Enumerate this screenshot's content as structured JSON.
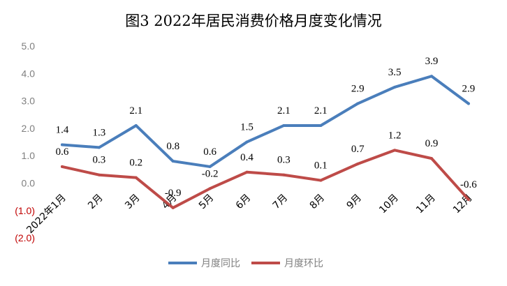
{
  "chart_data": {
    "type": "line",
    "title": "图3  2022年居民消费价格月度变化情况",
    "categories": [
      "2022年1月",
      "2月",
      "3月",
      "4月",
      "5月",
      "6月",
      "7月",
      "8月",
      "9月",
      "10月",
      "11月",
      "12月"
    ],
    "series": [
      {
        "name": "月度同比",
        "color": "#4a7ebb",
        "values": [
          1.4,
          1.3,
          2.1,
          0.8,
          0.6,
          1.5,
          2.1,
          2.1,
          2.9,
          3.5,
          3.9,
          2.9
        ],
        "labels": [
          "1.4",
          "1.3",
          "2.1",
          "0.8",
          "0.6",
          "1.5",
          "2.1",
          "2.1",
          "2.9",
          "3.5",
          "3.9",
          "2.9"
        ]
      },
      {
        "name": "月度环比",
        "color": "#be4b48",
        "values": [
          0.6,
          0.3,
          0.2,
          -0.9,
          -0.2,
          0.4,
          0.3,
          0.1,
          0.7,
          1.2,
          0.9,
          -0.6
        ],
        "labels": [
          "0.6",
          "0.3",
          "0.2",
          "-0.9",
          "-0.2",
          "0.4",
          "0.3",
          "0.1",
          "0.7",
          "1.2",
          "0.9",
          "-0.6"
        ]
      }
    ],
    "yticks": [
      "5.0",
      "4.0",
      "3.0",
      "2.0",
      "1.0",
      "0.0",
      "(1.0)",
      "(2.0)"
    ],
    "ytick_values": [
      5,
      4,
      3,
      2,
      1,
      0,
      -1,
      -2
    ],
    "negative_tick_color": "#c00000",
    "ylim": [
      -2,
      5
    ],
    "grid": false,
    "legend_position": "bottom"
  }
}
